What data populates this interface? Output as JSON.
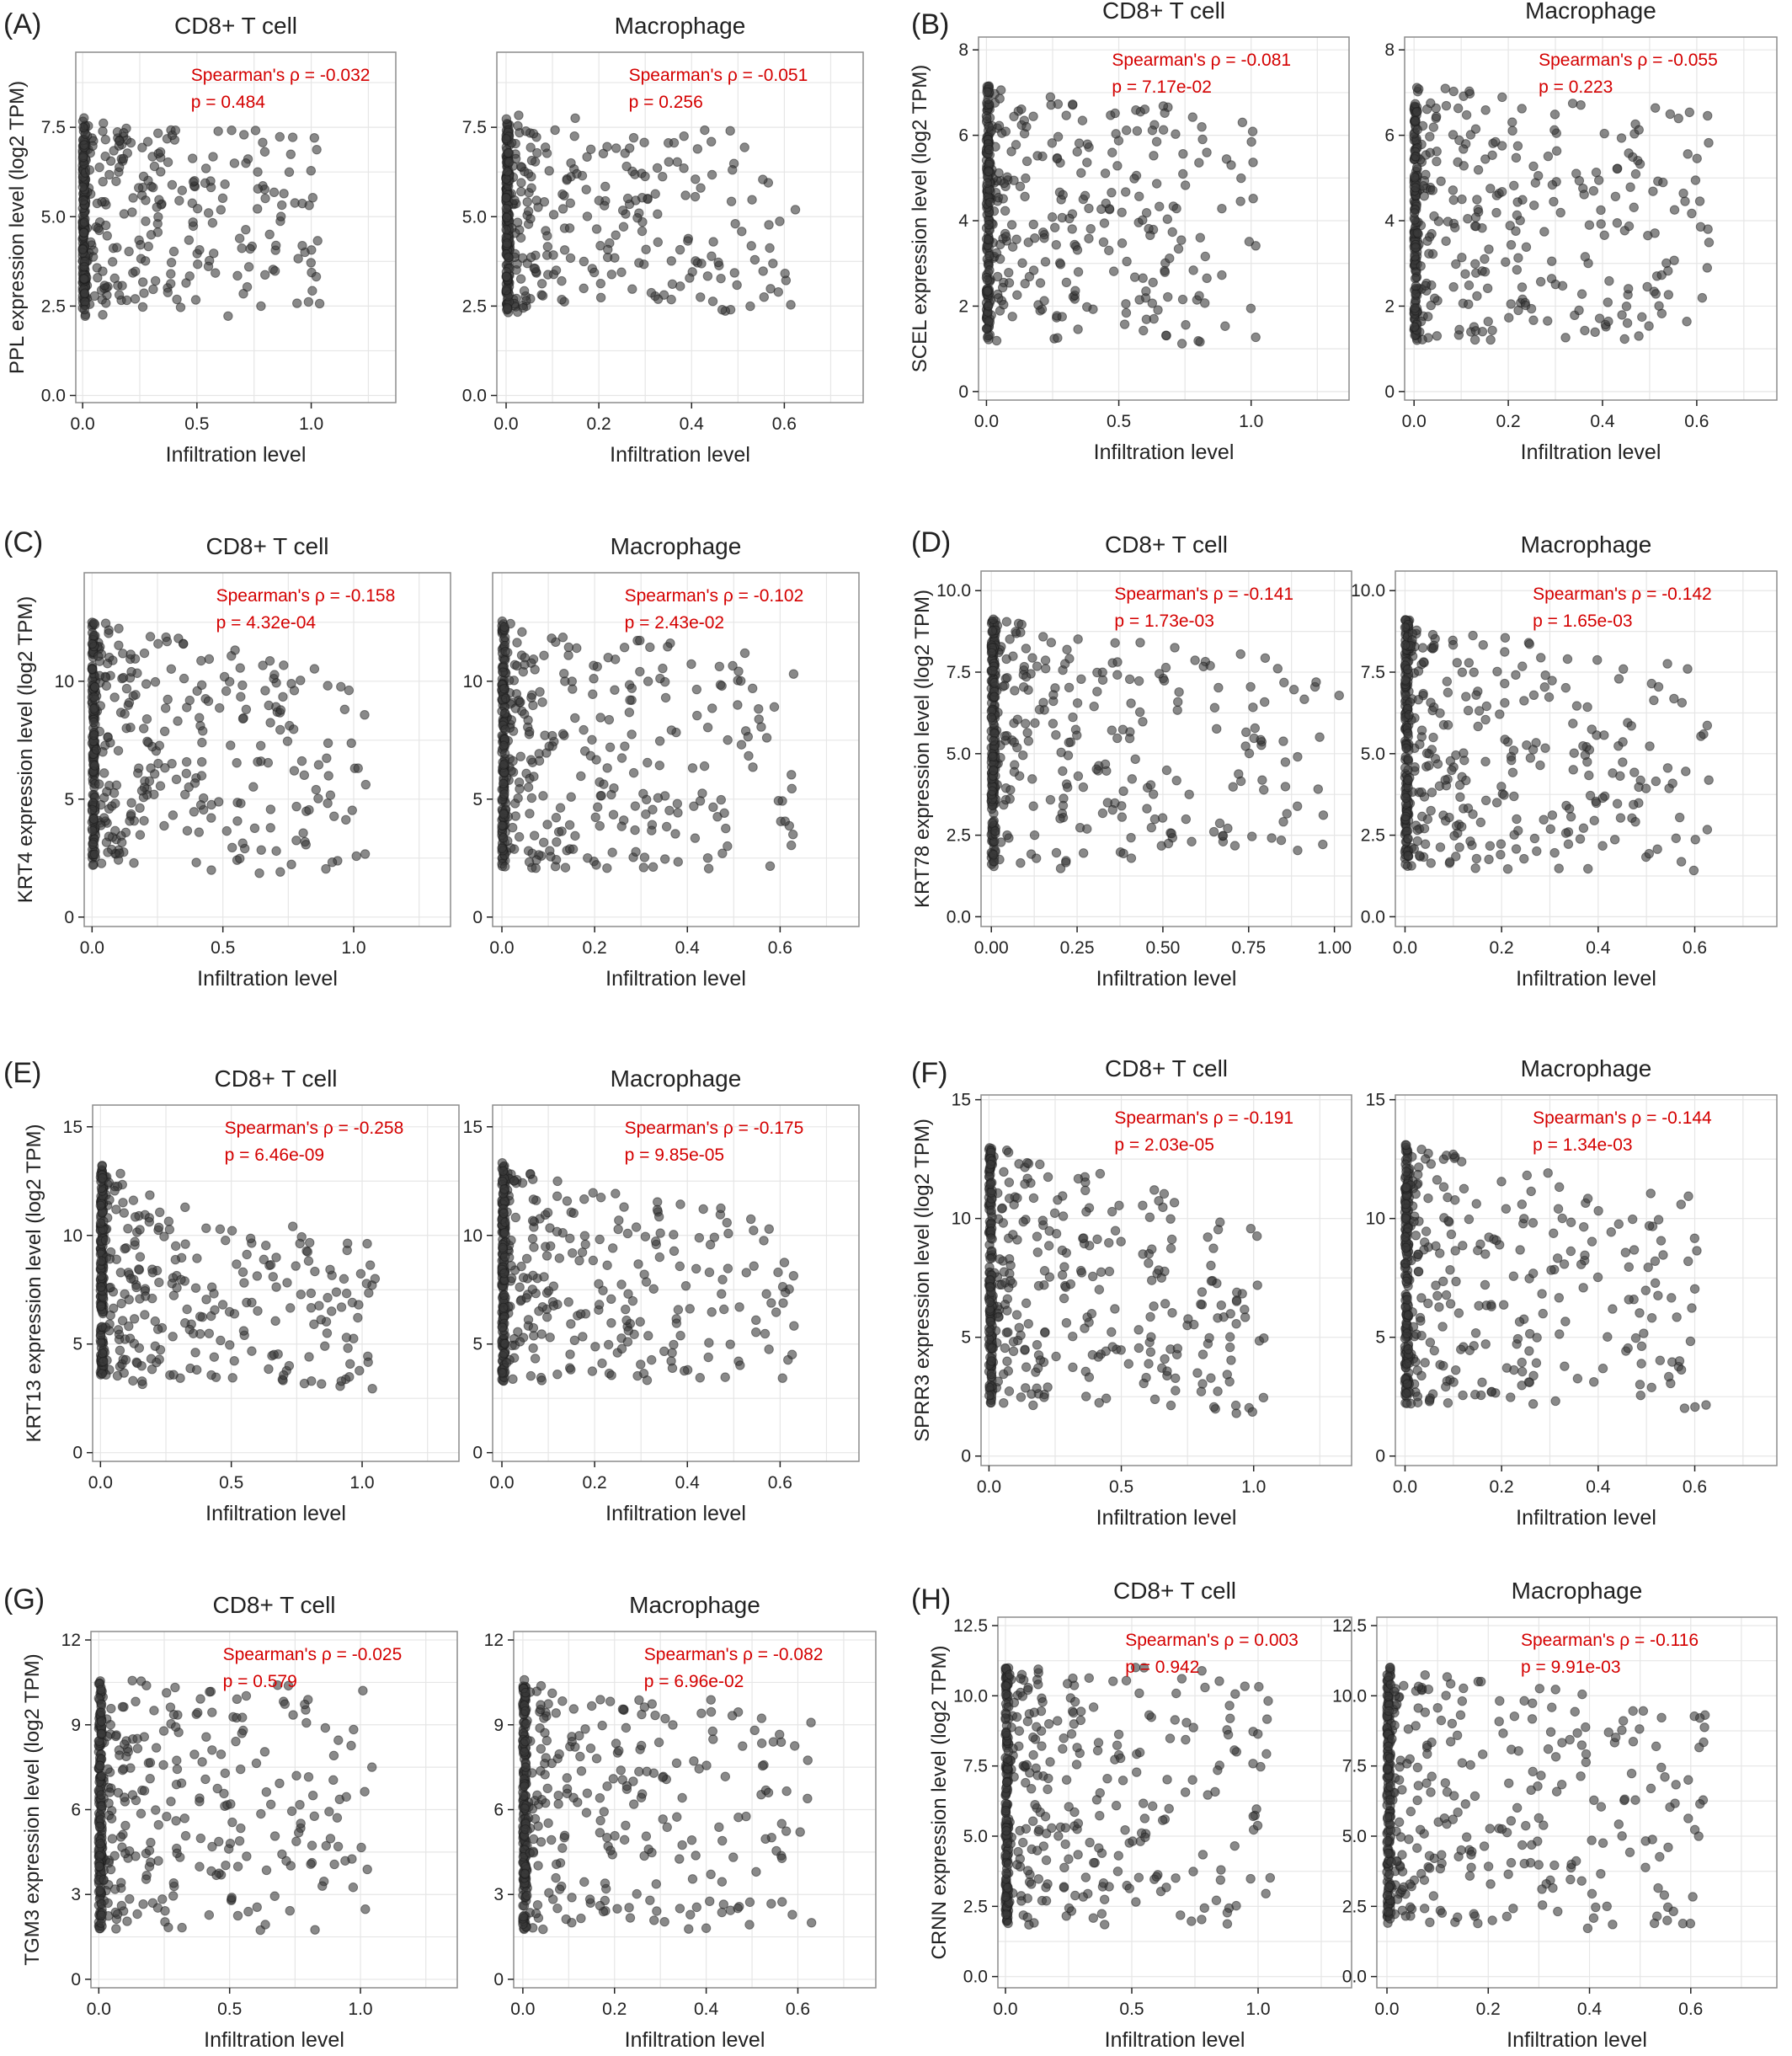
{
  "figure": {
    "panel_labels": [
      "(A)",
      "(B)",
      "(C)",
      "(D)",
      "(E)",
      "(F)",
      "(G)",
      "(H)"
    ],
    "colors": {
      "points": "#3a3a3a",
      "annotation": "#d40000",
      "grid": "#e6e6e6",
      "frame": "#8c8c8c",
      "text": "#222222"
    }
  },
  "chart_data": [
    {
      "panel": "(A)",
      "type": "scatter",
      "title": "CD8+ T cell",
      "xlabel": "Infiltration level",
      "ylabel": "PPL expression level (log2 TPM)",
      "xlim": [
        -0.03,
        1.37
      ],
      "ylim": [
        -0.2,
        9.6
      ],
      "xticks": [
        0.0,
        0.5,
        1.0
      ],
      "xtick_labels": [
        "0.0",
        "0.5",
        "1.0"
      ],
      "yticks": [
        0.0,
        2.5,
        5.0,
        7.5
      ],
      "ytick_labels": [
        "0.0",
        "2.5",
        "5.0",
        "7.5"
      ],
      "grid": true,
      "annotation_rho": "Spearman's ρ = -0.032",
      "annotation_p": "p = 0.484",
      "spearman_rho": -0.032,
      "p_value": 0.484,
      "spread": 0.75,
      "seed": 11
    },
    {
      "panel": "(A)",
      "type": "scatter",
      "title": "Macrophage",
      "xlabel": "Infiltration level",
      "ylabel": "",
      "xlim": [
        -0.02,
        0.77
      ],
      "ylim": [
        -0.2,
        9.6
      ],
      "xticks": [
        0.0,
        0.2,
        0.4,
        0.6
      ],
      "xtick_labels": [
        "0.0",
        "0.2",
        "0.4",
        "0.6"
      ],
      "yticks": [
        0.0,
        2.5,
        5.0,
        7.5
      ],
      "ytick_labels": [
        "0.0",
        "2.5",
        "5.0",
        "7.5"
      ],
      "grid": true,
      "annotation_rho": "Spearman's ρ = -0.051",
      "annotation_p": "p = 0.256",
      "spearman_rho": -0.051,
      "p_value": 0.256,
      "spread": 0.75,
      "seed": 12
    },
    {
      "panel": "(B)",
      "type": "scatter",
      "title": "CD8+ T cell",
      "xlabel": "Infiltration level",
      "ylabel": "SCEL expression level (log2 TPM)",
      "xlim": [
        -0.03,
        1.37
      ],
      "ylim": [
        -0.2,
        8.3
      ],
      "xticks": [
        0.0,
        0.5,
        1.0
      ],
      "xtick_labels": [
        "0.0",
        "0.5",
        "1.0"
      ],
      "yticks": [
        0,
        2,
        4,
        6,
        8
      ],
      "ytick_labels": [
        "0",
        "2",
        "4",
        "6",
        "8"
      ],
      "grid": true,
      "annotation_rho": "Spearman's ρ = -0.081",
      "annotation_p": "p = 7.17e-02",
      "spearman_rho": -0.081,
      "p_value": 0.0717,
      "spread": 1.0,
      "seed": 21
    },
    {
      "panel": "(B)",
      "type": "scatter",
      "title": "Macrophage",
      "xlabel": "Infiltration level",
      "ylabel": "",
      "xlim": [
        -0.02,
        0.77
      ],
      "ylim": [
        -0.2,
        8.3
      ],
      "xticks": [
        0.0,
        0.2,
        0.4,
        0.6
      ],
      "xtick_labels": [
        "0.0",
        "0.2",
        "0.4",
        "0.6"
      ],
      "yticks": [
        0,
        2,
        4,
        6,
        8
      ],
      "ytick_labels": [
        "0",
        "2",
        "4",
        "6",
        "8"
      ],
      "grid": true,
      "annotation_rho": "Spearman's ρ = -0.055",
      "annotation_p": "p = 0.223",
      "spearman_rho": -0.055,
      "p_value": 0.223,
      "spread": 1.0,
      "seed": 22
    },
    {
      "panel": "(C)",
      "type": "scatter",
      "title": "CD8+ T cell",
      "xlabel": "Infiltration level",
      "ylabel": "KRT4 expression level (log2 TPM)",
      "xlim": [
        -0.03,
        1.37
      ],
      "ylim": [
        -0.4,
        14.6
      ],
      "xticks": [
        0.0,
        0.5,
        1.0
      ],
      "xtick_labels": [
        "0.0",
        "0.5",
        "1.0"
      ],
      "yticks": [
        0,
        5,
        10
      ],
      "ytick_labels": [
        "0",
        "5",
        "10"
      ],
      "grid": true,
      "annotation_rho": "Spearman's ρ = -0.158",
      "annotation_p": "p = 4.32e-04",
      "spearman_rho": -0.158,
      "p_value": 0.000432,
      "spread": 1.0,
      "seed": 31
    },
    {
      "panel": "(C)",
      "type": "scatter",
      "title": "Macrophage",
      "xlabel": "Infiltration level",
      "ylabel": "",
      "xlim": [
        -0.02,
        0.77
      ],
      "ylim": [
        -0.4,
        14.6
      ],
      "xticks": [
        0.0,
        0.2,
        0.4,
        0.6
      ],
      "xtick_labels": [
        "0.0",
        "0.2",
        "0.4",
        "0.6"
      ],
      "yticks": [
        0,
        5,
        10
      ],
      "ytick_labels": [
        "0",
        "5",
        "10"
      ],
      "grid": true,
      "annotation_rho": "Spearman's ρ = -0.102",
      "annotation_p": "p = 2.43e-02",
      "spearman_rho": -0.102,
      "p_value": 0.0243,
      "spread": 1.0,
      "seed": 32
    },
    {
      "panel": "(D)",
      "type": "scatter",
      "title": "CD8+ T cell",
      "xlabel": "Infiltration level",
      "ylabel": "KRT78 expression level (log2 TPM)",
      "xlim": [
        -0.03,
        1.05
      ],
      "ylim": [
        -0.3,
        10.6
      ],
      "xticks": [
        0.0,
        0.25,
        0.5,
        0.75,
        1.0
      ],
      "xtick_labels": [
        "0.00",
        "0.25",
        "0.50",
        "0.75",
        "1.00"
      ],
      "yticks": [
        0.0,
        2.5,
        5.0,
        7.5,
        10.0
      ],
      "ytick_labels": [
        "0.0",
        "2.5",
        "5.0",
        "7.5",
        "10.0"
      ],
      "grid": true,
      "annotation_rho": "Spearman's ρ = -0.141",
      "annotation_p": "p = 1.73e-03",
      "spearman_rho": -0.141,
      "p_value": 0.00173,
      "spread": 1.0,
      "seed": 41
    },
    {
      "panel": "(D)",
      "type": "scatter",
      "title": "Macrophage",
      "xlabel": "Infiltration level",
      "ylabel": "",
      "xlim": [
        -0.02,
        0.77
      ],
      "ylim": [
        -0.3,
        10.6
      ],
      "xticks": [
        0.0,
        0.2,
        0.4,
        0.6
      ],
      "xtick_labels": [
        "0.0",
        "0.2",
        "0.4",
        "0.6"
      ],
      "yticks": [
        0.0,
        2.5,
        5.0,
        7.5,
        10.0
      ],
      "ytick_labels": [
        "0.0",
        "2.5",
        "5.0",
        "7.5",
        "10.0"
      ],
      "grid": true,
      "annotation_rho": "Spearman's ρ = -0.142",
      "annotation_p": "p = 1.65e-03",
      "spearman_rho": -0.142,
      "p_value": 0.00165,
      "spread": 1.0,
      "seed": 42
    },
    {
      "panel": "(E)",
      "type": "scatter",
      "title": "CD8+ T cell",
      "xlabel": "Infiltration level",
      "ylabel": "KRT13 expression level (log2 TPM)",
      "xlim": [
        -0.03,
        1.37
      ],
      "ylim": [
        -0.4,
        16.0
      ],
      "xticks": [
        0.0,
        0.5,
        1.0
      ],
      "xtick_labels": [
        "0.0",
        "0.5",
        "1.0"
      ],
      "yticks": [
        0,
        5,
        10,
        15
      ],
      "ytick_labels": [
        "0",
        "5",
        "10",
        "15"
      ],
      "grid": true,
      "annotation_rho": "Spearman's ρ = -0.258",
      "annotation_p": "p = 6.46e-09",
      "spearman_rho": -0.258,
      "p_value": 6.46e-09,
      "spread": 0.85,
      "seed": 51
    },
    {
      "panel": "(E)",
      "type": "scatter",
      "title": "Macrophage",
      "xlabel": "Infiltration level",
      "ylabel": "",
      "xlim": [
        -0.02,
        0.77
      ],
      "ylim": [
        -0.4,
        16.0
      ],
      "xticks": [
        0.0,
        0.2,
        0.4,
        0.6
      ],
      "xtick_labels": [
        "0.0",
        "0.2",
        "0.4",
        "0.6"
      ],
      "yticks": [
        0,
        5,
        10,
        15
      ],
      "ytick_labels": [
        "0",
        "5",
        "10",
        "15"
      ],
      "grid": true,
      "annotation_rho": "Spearman's ρ = -0.175",
      "annotation_p": "p = 9.85e-05",
      "spearman_rho": -0.175,
      "p_value": 9.85e-05,
      "spread": 0.85,
      "seed": 52
    },
    {
      "panel": "(F)",
      "type": "scatter",
      "title": "CD8+ T cell",
      "xlabel": "Infiltration level",
      "ylabel": "SPRR3 expression level (log2 TPM)",
      "xlim": [
        -0.03,
        1.37
      ],
      "ylim": [
        -0.4,
        15.2
      ],
      "xticks": [
        0.0,
        0.5,
        1.0
      ],
      "xtick_labels": [
        "0.0",
        "0.5",
        "1.0"
      ],
      "yticks": [
        0,
        5,
        10,
        15
      ],
      "ytick_labels": [
        "0",
        "5",
        "10",
        "15"
      ],
      "grid": true,
      "annotation_rho": "Spearman's ρ = -0.191",
      "annotation_p": "p = 2.03e-05",
      "spearman_rho": -0.191,
      "p_value": 2.03e-05,
      "spread": 1.0,
      "seed": 61
    },
    {
      "panel": "(F)",
      "type": "scatter",
      "title": "Macrophage",
      "xlabel": "Infiltration level",
      "ylabel": "",
      "xlim": [
        -0.02,
        0.77
      ],
      "ylim": [
        -0.4,
        15.2
      ],
      "xticks": [
        0.0,
        0.2,
        0.4,
        0.6
      ],
      "xtick_labels": [
        "0.0",
        "0.2",
        "0.4",
        "0.6"
      ],
      "yticks": [
        0,
        5,
        10,
        15
      ],
      "ytick_labels": [
        "0",
        "5",
        "10",
        "15"
      ],
      "grid": true,
      "annotation_rho": "Spearman's ρ = -0.144",
      "annotation_p": "p = 1.34e-03",
      "spearman_rho": -0.144,
      "p_value": 0.00134,
      "spread": 1.0,
      "seed": 62
    },
    {
      "panel": "(G)",
      "type": "scatter",
      "title": "CD8+ T cell",
      "xlabel": "Infiltration level",
      "ylabel": "TGM3 expression level (log2 TPM)",
      "xlim": [
        -0.03,
        1.37
      ],
      "ylim": [
        -0.3,
        12.3
      ],
      "xticks": [
        0.0,
        0.5,
        1.0
      ],
      "xtick_labels": [
        "0.0",
        "0.5",
        "1.0"
      ],
      "yticks": [
        0,
        3,
        6,
        9,
        12
      ],
      "ytick_labels": [
        "0",
        "3",
        "6",
        "9",
        "12"
      ],
      "grid": true,
      "annotation_rho": "Spearman's ρ = -0.025",
      "annotation_p": "p = 0.579",
      "spearman_rho": -0.025,
      "p_value": 0.579,
      "spread": 1.0,
      "seed": 71
    },
    {
      "panel": "(G)",
      "type": "scatter",
      "title": "Macrophage",
      "xlabel": "Infiltration level",
      "ylabel": "",
      "xlim": [
        -0.02,
        0.77
      ],
      "ylim": [
        -0.3,
        12.3
      ],
      "xticks": [
        0.0,
        0.2,
        0.4,
        0.6
      ],
      "xtick_labels": [
        "0.0",
        "0.2",
        "0.4",
        "0.6"
      ],
      "yticks": [
        0,
        3,
        6,
        9,
        12
      ],
      "ytick_labels": [
        "0",
        "3",
        "6",
        "9",
        "12"
      ],
      "grid": true,
      "annotation_rho": "Spearman's ρ = -0.082",
      "annotation_p": "p = 6.96e-02",
      "spearman_rho": -0.082,
      "p_value": 0.0696,
      "spread": 1.0,
      "seed": 72
    },
    {
      "panel": "(H)",
      "type": "scatter",
      "title": "CD8+ T cell",
      "xlabel": "Infiltration level",
      "ylabel": "CRNN expression level (log2 TPM)",
      "xlim": [
        -0.03,
        1.37
      ],
      "ylim": [
        -0.4,
        12.8
      ],
      "xticks": [
        0.0,
        0.5,
        1.0
      ],
      "xtick_labels": [
        "0.0",
        "0.5",
        "1.0"
      ],
      "yticks": [
        0.0,
        2.5,
        5.0,
        7.5,
        10.0,
        12.5
      ],
      "ytick_labels": [
        "0.0",
        "2.5",
        "5.0",
        "7.5",
        "10.0",
        "12.5"
      ],
      "grid": true,
      "annotation_rho": "Spearman's ρ = 0.003",
      "annotation_p": "p = 0.942",
      "spearman_rho": 0.003,
      "p_value": 0.942,
      "spread": 1.0,
      "seed": 81
    },
    {
      "panel": "(H)",
      "type": "scatter",
      "title": "Macrophage",
      "xlabel": "Infiltration level",
      "ylabel": "",
      "xlim": [
        -0.02,
        0.77
      ],
      "ylim": [
        -0.4,
        12.8
      ],
      "xticks": [
        0.0,
        0.2,
        0.4,
        0.6
      ],
      "xtick_labels": [
        "0.0",
        "0.2",
        "0.4",
        "0.6"
      ],
      "yticks": [
        0.0,
        2.5,
        5.0,
        7.5,
        10.0,
        12.5
      ],
      "ytick_labels": [
        "0.0",
        "2.5",
        "5.0",
        "7.5",
        "10.0",
        "12.5"
      ],
      "grid": true,
      "annotation_rho": "Spearman's ρ = -0.116",
      "annotation_p": "p = 9.91e-03",
      "spearman_rho": -0.116,
      "p_value": 0.00991,
      "spread": 1.0,
      "seed": 82
    }
  ]
}
